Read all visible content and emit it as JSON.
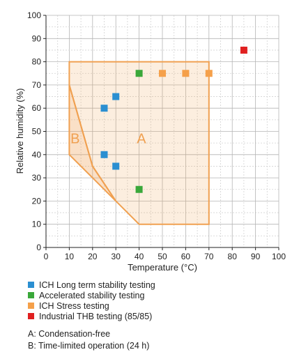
{
  "chart_data": {
    "type": "scatter",
    "xlabel": "Temperature (°C)",
    "ylabel": "Relative humidity (%)",
    "xlim": [
      0,
      100
    ],
    "ylim": [
      0,
      100
    ],
    "xticks": [
      0,
      10,
      20,
      30,
      40,
      50,
      60,
      70,
      80,
      90,
      100
    ],
    "yticks": [
      0,
      10,
      20,
      30,
      40,
      50,
      60,
      70,
      80,
      90,
      100
    ],
    "grid": true,
    "legend_position": "below",
    "series": [
      {
        "name": "ICH Long term stability testing",
        "color": "#2b8fd1",
        "points": [
          [
            25,
            60
          ],
          [
            30,
            65
          ],
          [
            25,
            40
          ],
          [
            30,
            35
          ]
        ]
      },
      {
        "name": "Accelerated stability testing",
        "color": "#3aa83a",
        "points": [
          [
            40,
            75
          ],
          [
            40,
            25
          ]
        ]
      },
      {
        "name": "ICH Stress testing",
        "color": "#f5a04a",
        "points": [
          [
            50,
            75
          ],
          [
            60,
            75
          ],
          [
            70,
            75
          ]
        ]
      },
      {
        "name": "Industrial THB testing (85/85)",
        "color": "#e02020",
        "points": [
          [
            85,
            85
          ]
        ]
      }
    ],
    "regions": [
      {
        "label": "A",
        "color": "#f0a050",
        "polygon": [
          [
            10,
            80
          ],
          [
            70,
            80
          ],
          [
            70,
            10
          ],
          [
            40,
            10
          ],
          [
            30,
            20
          ],
          [
            20,
            35
          ],
          [
            10,
            70
          ]
        ]
      },
      {
        "label": "B",
        "color": "#f0a050",
        "polygon": [
          [
            10,
            70
          ],
          [
            20,
            35
          ],
          [
            30,
            20
          ],
          [
            20,
            30
          ],
          [
            10,
            40
          ]
        ]
      }
    ]
  },
  "notes": [
    "A: Condensation-free",
    "B: Time-limited operation (24 h)"
  ]
}
